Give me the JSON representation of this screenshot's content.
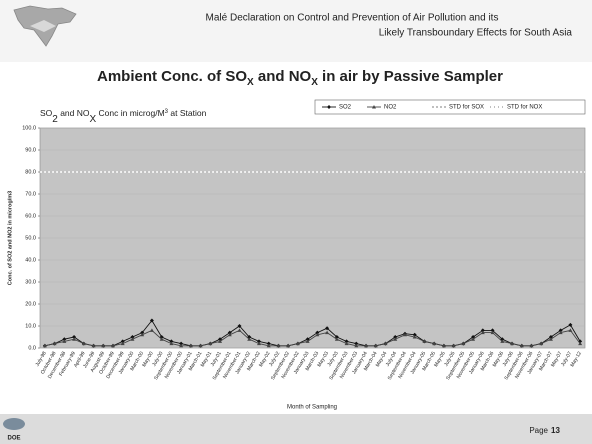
{
  "header": {
    "text_line1": "Malé Declaration on Control and Prevention of Air Pollution and its",
    "text_line2": "Likely Transboundary Effects for South Asia",
    "title_parts": [
      "Ambient Conc. of SO",
      "X",
      " and NO",
      "X",
      " in air by Passive Sampler"
    ]
  },
  "chart_data": {
    "type": "line",
    "title_parts": [
      "SO",
      "2",
      " and NO",
      "X",
      " Conc in microg/M",
      "3",
      " at Station"
    ],
    "y_label": "Conc. of SO2 and NO2 in microg/m3",
    "x_label": "Month of Sampling",
    "categories": [
      "July-98",
      "October-98",
      "December-98",
      "February-99",
      "April-99",
      "June-99",
      "August-99",
      "October-99",
      "December-99",
      "January-00",
      "March-00",
      "May-00",
      "July-00",
      "September-00",
      "November-00",
      "January-01",
      "March-01",
      "May-01",
      "July-01",
      "September-01",
      "November-01",
      "January-02",
      "March-02",
      "May-02",
      "July-02",
      "September-02",
      "November-02",
      "January-03",
      "March-03",
      "May-03",
      "July-03",
      "September-03",
      "November-03",
      "January-04",
      "March-04",
      "May-04",
      "July-04",
      "September-04",
      "November-04",
      "January-05",
      "March-05",
      "May-05",
      "July-05",
      "September-05",
      "November-05",
      "January-06",
      "March-06",
      "May-06",
      "July-06",
      "September-06",
      "November-06",
      "January-07",
      "March-07",
      "May-07",
      "July-07",
      "May-12"
    ],
    "series": [
      {
        "name": "SO2",
        "color": "#111111",
        "marker": "diamond",
        "values": [
          1,
          2,
          4,
          5,
          2,
          1,
          1,
          1,
          3,
          5,
          7,
          12.5,
          5,
          3,
          2,
          1,
          1,
          2,
          4,
          7,
          10,
          5,
          3,
          2,
          1,
          1,
          2,
          4,
          7,
          9,
          5,
          3,
          2,
          1,
          1,
          2,
          5,
          6.5,
          6,
          3,
          2,
          1,
          1,
          2,
          5,
          8,
          8,
          4,
          2,
          1,
          1,
          2,
          5,
          8,
          10.5,
          3
        ]
      },
      {
        "name": "NO2",
        "color": "#444444",
        "marker": "triangle",
        "values": [
          1,
          2,
          3,
          4,
          2,
          1,
          1,
          1,
          2,
          4,
          6,
          8,
          4,
          2,
          1,
          1,
          1,
          2,
          3,
          6,
          8,
          4,
          2,
          1,
          1,
          1,
          2,
          3,
          6,
          7,
          4,
          2,
          1,
          1,
          1,
          2,
          4,
          6,
          5,
          3,
          2,
          1,
          1,
          2,
          4,
          7,
          7,
          3,
          2,
          1,
          1,
          2,
          4,
          7,
          8,
          2
        ]
      }
    ],
    "reference_lines": [
      {
        "name": "STD for SOX",
        "value": 80,
        "color": "#ffffff"
      },
      {
        "name": "STD for NOX",
        "value": 80,
        "color": "#eeeeee"
      }
    ],
    "ylim": [
      0,
      100
    ],
    "yticks": [
      {
        "value": 0,
        "label": "0.0"
      },
      {
        "value": 10,
        "label": "10.0"
      },
      {
        "value": 20,
        "label": "20.0"
      },
      {
        "value": 30,
        "label": "30.0"
      },
      {
        "value": 40,
        "label": "40.0"
      },
      {
        "value": 50,
        "label": "50.0"
      },
      {
        "value": 60,
        "label": "60.0"
      },
      {
        "value": 70,
        "label": "70.0"
      },
      {
        "value": 80,
        "label": "80.0"
      },
      {
        "value": 90,
        "label": "90.0"
      },
      {
        "value": 100,
        "label": "100.0"
      }
    ],
    "grid": true,
    "plot_color": "#c4c4c4"
  },
  "footer": {
    "logo_text": "DOE",
    "page_label": "Page",
    "page_number": "13"
  }
}
